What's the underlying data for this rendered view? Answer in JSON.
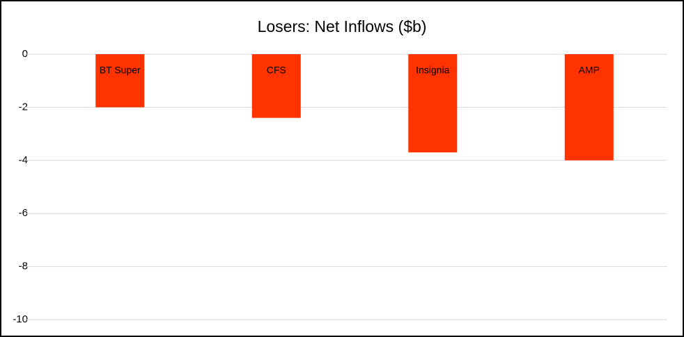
{
  "chart_data": {
    "type": "bar",
    "title": "Losers: Net Inflows ($b)",
    "categories": [
      "BT Super",
      "CFS",
      "Insignia",
      "AMP"
    ],
    "values": [
      -2.0,
      -2.4,
      -3.7,
      -4.0
    ],
    "color": "#ff3300",
    "ylim": [
      -10,
      0
    ],
    "yticks": [
      0,
      -2,
      -4,
      -6,
      -8,
      -10
    ],
    "grid": true
  }
}
